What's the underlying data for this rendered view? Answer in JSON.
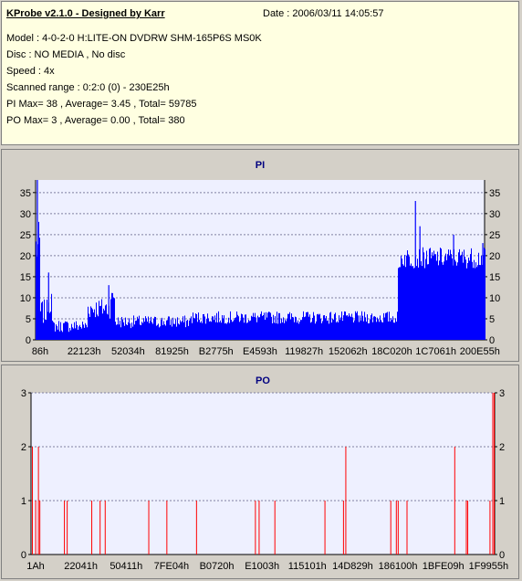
{
  "info": {
    "title": "KProbe v2.1.0 - Designed by Karr",
    "date": "Date : 2006/03/11 14:05:57",
    "model": "Model : 4-0-2-0 H:LITE-ON DVDRW SHM-165P6S MS0K",
    "disc": "Disc : NO MEDIA , No disc",
    "speed": "Speed : 4x",
    "scanned": "Scanned range : 0:2:0 (0) - 230E25h",
    "pi": "PI Max= 38 , Average= 3.45 , Total= 59785",
    "po": "PO Max= 3 , Average= 0.00 , Total= 380"
  },
  "colors": {
    "pi_fill": "#0000ff",
    "po_line": "#ff0000",
    "plot_bg": "#eef0ff",
    "panel_bg": "#d4d0c8",
    "info_bg": "#ffffe1",
    "title_color": "#000080"
  },
  "chart_data": [
    {
      "type": "area",
      "title": "PI",
      "ylim": [
        0,
        38
      ],
      "yticks": [
        0,
        5,
        10,
        15,
        20,
        25,
        30,
        35
      ],
      "xtick_labels": [
        "86h",
        "22123h",
        "52034h",
        "81925h",
        "B2775h",
        "E4593h",
        "119827h",
        "152062h",
        "18C020h",
        "1C7061h",
        "200E55h"
      ],
      "grid": true,
      "segments": [
        {
          "from": 0.0,
          "to": 0.01,
          "base": 21,
          "amp": 12
        },
        {
          "from": 0.01,
          "to": 0.025,
          "base": 6,
          "amp": 6
        },
        {
          "from": 0.025,
          "to": 0.035,
          "base": 9,
          "amp": 7
        },
        {
          "from": 0.035,
          "to": 0.115,
          "base": 3,
          "amp": 3
        },
        {
          "from": 0.115,
          "to": 0.165,
          "base": 7,
          "amp": 5
        },
        {
          "from": 0.165,
          "to": 0.175,
          "base": 10,
          "amp": 3
        },
        {
          "from": 0.175,
          "to": 0.345,
          "base": 4,
          "amp": 3
        },
        {
          "from": 0.345,
          "to": 0.6,
          "base": 5,
          "amp": 3
        },
        {
          "from": 0.6,
          "to": 0.805,
          "base": 5,
          "amp": 3
        },
        {
          "from": 0.805,
          "to": 0.81,
          "base": 15,
          "amp": 8
        },
        {
          "from": 0.81,
          "to": 1.0,
          "base": 19,
          "amp": 5
        }
      ],
      "spikes": [
        {
          "x": 0.003,
          "y": 38
        },
        {
          "x": 0.028,
          "y": 16
        },
        {
          "x": 0.162,
          "y": 13
        },
        {
          "x": 0.845,
          "y": 33
        },
        {
          "x": 0.855,
          "y": 27
        },
        {
          "x": 0.93,
          "y": 25
        },
        {
          "x": 0.995,
          "y": 23
        }
      ]
    },
    {
      "type": "bar",
      "title": "PO",
      "ylim": [
        0,
        3
      ],
      "yticks": [
        0,
        1,
        2,
        3
      ],
      "xtick_labels": [
        "1Ah",
        "22041h",
        "50411h",
        "7FE04h",
        "B0720h",
        "E1003h",
        "115101h",
        "14D829h",
        "186100h",
        "1BFE09h",
        "1F9955h"
      ],
      "grid": true,
      "bars": [
        {
          "x": 0.003,
          "y": 2
        },
        {
          "x": 0.01,
          "y": 1
        },
        {
          "x": 0.016,
          "y": 2
        },
        {
          "x": 0.019,
          "y": 1
        },
        {
          "x": 0.072,
          "y": 1
        },
        {
          "x": 0.078,
          "y": 1
        },
        {
          "x": 0.131,
          "y": 1
        },
        {
          "x": 0.149,
          "y": 1
        },
        {
          "x": 0.16,
          "y": 1
        },
        {
          "x": 0.254,
          "y": 1
        },
        {
          "x": 0.293,
          "y": 1
        },
        {
          "x": 0.357,
          "y": 1
        },
        {
          "x": 0.484,
          "y": 1
        },
        {
          "x": 0.492,
          "y": 1
        },
        {
          "x": 0.526,
          "y": 1
        },
        {
          "x": 0.634,
          "y": 1
        },
        {
          "x": 0.674,
          "y": 1
        },
        {
          "x": 0.679,
          "y": 2
        },
        {
          "x": 0.776,
          "y": 1
        },
        {
          "x": 0.788,
          "y": 1
        },
        {
          "x": 0.792,
          "y": 1
        },
        {
          "x": 0.811,
          "y": 1
        },
        {
          "x": 0.914,
          "y": 2
        },
        {
          "x": 0.939,
          "y": 1
        },
        {
          "x": 0.942,
          "y": 1
        },
        {
          "x": 0.99,
          "y": 1
        },
        {
          "x": 0.996,
          "y": 3
        },
        {
          "x": 0.999,
          "y": 3
        }
      ]
    }
  ]
}
